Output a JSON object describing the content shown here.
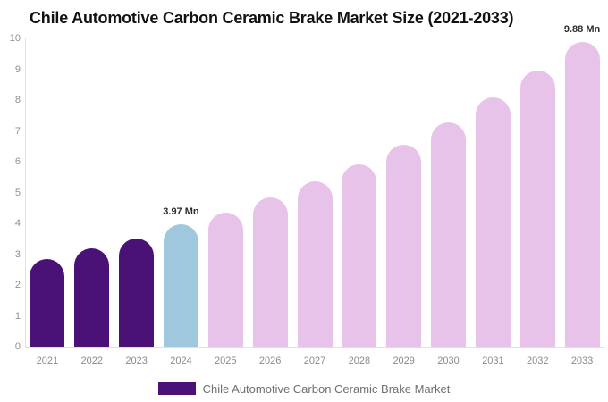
{
  "title": "Chile Automotive Carbon Ceramic Brake Market Size (2021-2033)",
  "legend": {
    "label": "Chile Automotive Carbon Ceramic Brake Market",
    "swatch_color": "#4A1277"
  },
  "chart_data": {
    "type": "bar",
    "title": "Chile Automotive Carbon Ceramic Brake Market Size (2021-2033)",
    "categories": [
      "2021",
      "2022",
      "2023",
      "2024",
      "2025",
      "2026",
      "2027",
      "2028",
      "2029",
      "2030",
      "2031",
      "2032",
      "2033"
    ],
    "values": [
      2.85,
      3.18,
      3.5,
      3.97,
      4.35,
      4.85,
      5.35,
      5.92,
      6.55,
      7.28,
      8.08,
      8.95,
      9.88
    ],
    "unit": "Mn",
    "xlabel": "",
    "ylabel": "",
    "ylim": [
      0,
      10
    ],
    "yticks": [
      0,
      1,
      2,
      3,
      4,
      5,
      6,
      7,
      8,
      9,
      10
    ],
    "grid": false,
    "legend_position": "bottom",
    "bar_colors": [
      "#4A1277",
      "#4A1277",
      "#4A1277",
      "#9FC8DF",
      "#E8C3E9",
      "#E8C3E9",
      "#E8C3E9",
      "#E8C3E9",
      "#E8C3E9",
      "#E8C3E9",
      "#E8C3E9",
      "#E8C3E9",
      "#E8C3E9"
    ],
    "color_roles": {
      "historical": "#4A1277",
      "base_year": "#9FC8DF",
      "forecast": "#E8C3E9"
    },
    "data_labels": [
      {
        "category": "2024",
        "text": "3.97 Mn"
      },
      {
        "category": "2033",
        "text": "9.88 Mn"
      }
    ]
  }
}
